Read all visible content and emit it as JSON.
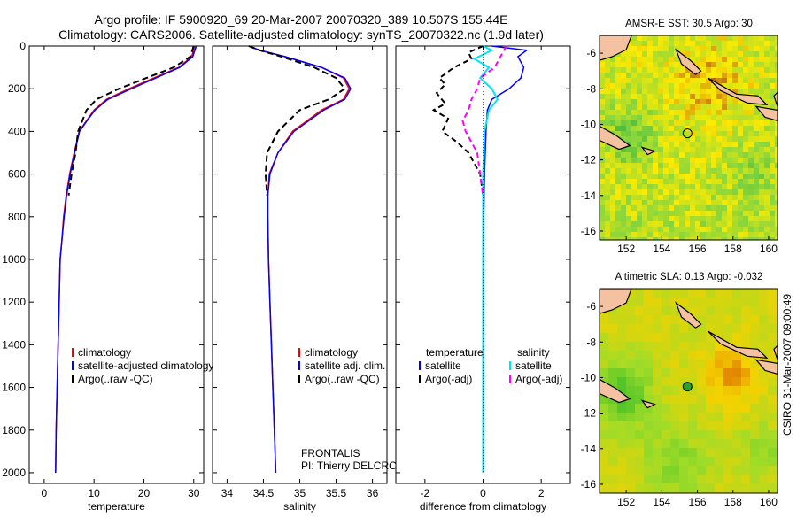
{
  "title_line1": "Argo profile: IF 5900920_69 20-Mar-2007 20070320_389 10.507S 155.44E",
  "title_line2": "Climatology: CARS2006. Satellite-adjusted climatology: synTS_20070322.nc (1.9d later)",
  "side_stamp": "CSIRO 31-Mar-2007 09:00:49",
  "colors": {
    "climatology": "#ff0000",
    "satellite": "#0000ff",
    "argo": "#000000",
    "sat_salt": "#00e5ee",
    "argo_salt": "#ff00ff"
  },
  "panels": {
    "temperature": {
      "xlabel": "temperature",
      "xticks": [
        0,
        10,
        20,
        30
      ],
      "xlim": [
        -3,
        32
      ],
      "legend": [
        "climatology",
        "satellite-adjusted climatology",
        "Argo(..raw -QC)"
      ]
    },
    "salinity": {
      "xlabel": "salinity",
      "xticks": [
        34,
        34.5,
        35,
        35.5,
        36
      ],
      "xlim": [
        33.8,
        36.2
      ],
      "legend": [
        "climatology",
        "satellite adj. clim.",
        "Argo(..raw -QC)"
      ],
      "note1": "FRONTALIS",
      "note2": "PI: Thierry DELCROIX"
    },
    "difference": {
      "xlabel": "difference from climatology",
      "xticks": [
        -2,
        0,
        2
      ],
      "xlim": [
        -3,
        3
      ],
      "legend_head_t": "temperature",
      "legend_head_s": "salinity",
      "legend_sat": "satellite",
      "legend_argo": "Argo(-adj)"
    },
    "depth_ticks": [
      0,
      200,
      400,
      600,
      800,
      1000,
      1200,
      1400,
      1600,
      1800,
      2000
    ],
    "depth_lim": [
      0,
      2050
    ]
  },
  "maps": {
    "sst_title": "AMSR-E SST: 30.5 Argo: 30",
    "sla_title": "Altimetric SLA: 0.13 Argo: -0.032",
    "xticks": [
      152,
      154,
      156,
      158,
      160
    ],
    "yticks": [
      -6,
      -8,
      -10,
      -12,
      -14,
      -16
    ],
    "lon_lim": [
      150.5,
      160.5
    ],
    "lat_lim": [
      -16.5,
      -5
    ],
    "argo_point": {
      "lon": 155.44,
      "lat": -10.507
    }
  },
  "chart_data": [
    {
      "type": "line",
      "title": "",
      "xlabel": "temperature",
      "ylabel": "",
      "xlim": [
        -3,
        32
      ],
      "ylim": [
        2050,
        0
      ],
      "series": [
        {
          "name": "climatology",
          "x": [
            30.2,
            29.6,
            27,
            22,
            17,
            12.5,
            10,
            8.5,
            7,
            6,
            5.1,
            4.4,
            3.9,
            3.6,
            3.2,
            3,
            2.8,
            2.6,
            2.4,
            2.3
          ],
          "y": [
            0,
            50,
            100,
            150,
            200,
            250,
            300,
            350,
            400,
            500,
            600,
            700,
            800,
            900,
            1000,
            1200,
            1400,
            1600,
            1800,
            2000
          ]
        },
        {
          "name": "satellite-adjusted climatology",
          "x": [
            30.5,
            29.8,
            27.2,
            22.4,
            17.5,
            12.8,
            10.2,
            8.6,
            7.1,
            6.1,
            5.2,
            4.5,
            4,
            3.6,
            3.2,
            3,
            2.8,
            2.6,
            2.4,
            2.3
          ],
          "y": [
            0,
            50,
            100,
            150,
            200,
            250,
            300,
            350,
            400,
            500,
            600,
            700,
            800,
            900,
            1000,
            1200,
            1400,
            1600,
            1800,
            2000
          ]
        },
        {
          "name": "Argo(..raw -QC)",
          "x": [
            30,
            29.3,
            26,
            20.5,
            15,
            10.5,
            8.5,
            6.8,
            6.3,
            5.5,
            4.9
          ],
          "y": [
            0,
            50,
            100,
            150,
            200,
            250,
            300,
            400,
            500,
            600,
            700
          ]
        }
      ]
    },
    {
      "type": "line",
      "title": "",
      "xlabel": "salinity",
      "ylabel": "",
      "xlim": [
        33.8,
        36.2
      ],
      "ylim": [
        2050,
        0
      ],
      "series": [
        {
          "name": "climatology",
          "x": [
            34.3,
            34.45,
            34.8,
            35.3,
            35.6,
            35.68,
            35.6,
            35.3,
            34.9,
            34.7,
            34.58,
            34.56,
            34.56,
            34.57,
            34.59,
            34.61,
            34.63,
            34.65,
            34.67
          ],
          "y": [
            0,
            20,
            50,
            100,
            150,
            200,
            250,
            300,
            400,
            500,
            600,
            700,
            800,
            1000,
            1200,
            1400,
            1600,
            1800,
            2000
          ]
        },
        {
          "name": "satellite adj. clim.",
          "x": [
            34.3,
            34.45,
            34.8,
            35.3,
            35.62,
            35.7,
            35.62,
            35.33,
            34.92,
            34.7,
            34.59,
            34.56,
            34.56,
            34.57,
            34.59,
            34.61,
            34.63,
            34.65,
            34.67
          ],
          "y": [
            0,
            20,
            50,
            100,
            150,
            200,
            250,
            300,
            400,
            500,
            600,
            700,
            800,
            1000,
            1200,
            1400,
            1600,
            1800,
            2000
          ]
        },
        {
          "name": "Argo(..raw -QC)",
          "x": [
            34.3,
            34.45,
            34.75,
            35.2,
            35.5,
            35.62,
            35.4,
            35.0,
            34.7,
            34.55,
            34.53,
            34.55
          ],
          "y": [
            0,
            20,
            50,
            100,
            150,
            200,
            250,
            300,
            400,
            500,
            600,
            700
          ]
        }
      ]
    },
    {
      "type": "line",
      "title": "",
      "xlabel": "difference from climatology",
      "ylabel": "",
      "xlim": [
        -3,
        3
      ],
      "ylim": [
        2050,
        0
      ],
      "series": [
        {
          "name": "temperature satellite",
          "x": [
            0.3,
            1.5,
            1.2,
            1.4,
            1.3,
            0.9,
            0.3,
            0.15,
            0.1,
            0.05,
            0.02,
            0,
            0,
            0,
            0
          ],
          "y": [
            0,
            20,
            50,
            100,
            150,
            200,
            250,
            300,
            400,
            600,
            800,
            1000,
            1200,
            1600,
            2000
          ]
        },
        {
          "name": "temperature Argo(-adj)",
          "x": [
            0,
            -0.5,
            -0.4,
            -1.0,
            -1.5,
            -1.3,
            -1.6,
            -1.3,
            -1.7,
            -1.2,
            -1.4,
            -0.9,
            -0.5,
            -0.3,
            -0.1,
            0
          ],
          "y": [
            0,
            30,
            60,
            100,
            150,
            180,
            220,
            270,
            300,
            340,
            400,
            450,
            500,
            550,
            600,
            700
          ]
        },
        {
          "name": "salinity satellite",
          "x": [
            0,
            0.3,
            -0.3,
            0.2,
            -0.1,
            0.3,
            0.5,
            0.2,
            0.05,
            0,
            0,
            0,
            0,
            0
          ],
          "y": [
            0,
            20,
            60,
            100,
            150,
            200,
            250,
            300,
            400,
            600,
            800,
            1200,
            1600,
            2000
          ]
        },
        {
          "name": "salinity Argo(-adj)",
          "x": [
            0.8,
            0.6,
            0.4,
            -0.1,
            -0.2,
            -0.4,
            -0.5,
            -0.7,
            -0.6,
            -0.4,
            -0.2,
            -0.1,
            0
          ],
          "y": [
            0,
            50,
            100,
            150,
            200,
            250,
            300,
            350,
            400,
            450,
            500,
            600,
            700
          ]
        }
      ]
    }
  ]
}
